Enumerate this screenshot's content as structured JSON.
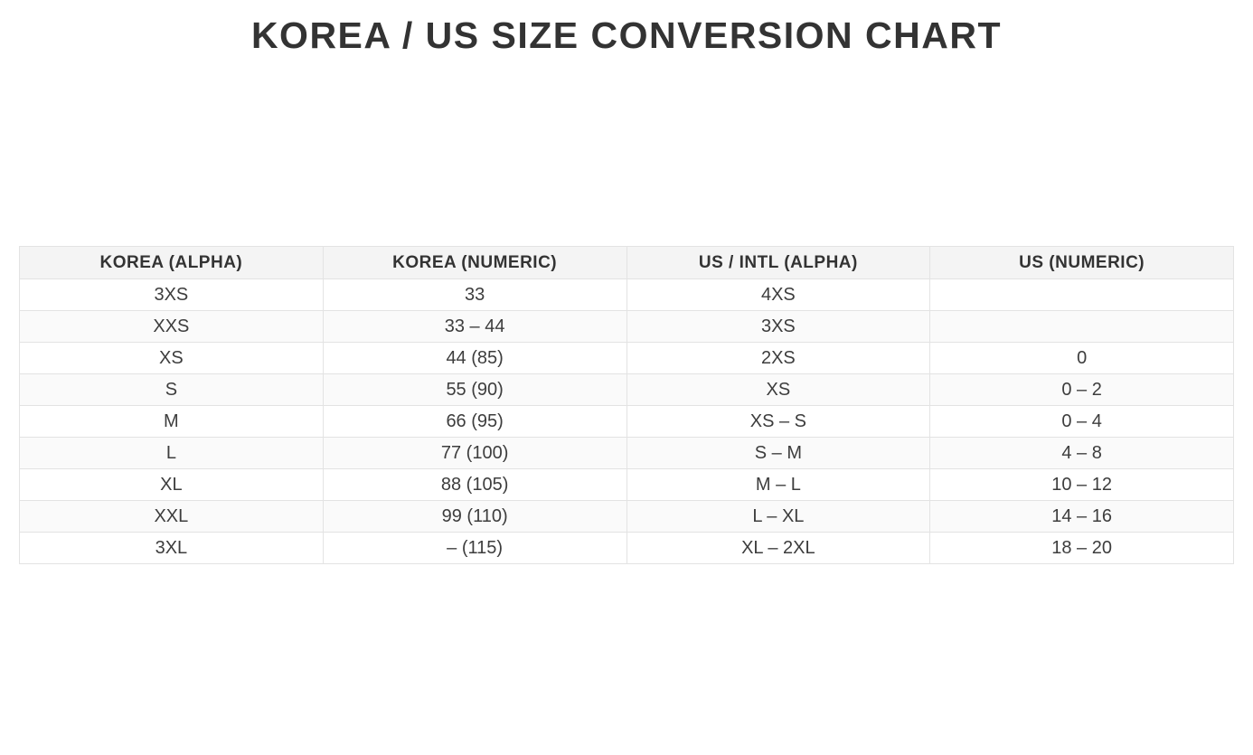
{
  "page": {
    "title": "KOREA / US SIZE CONVERSION CHART"
  },
  "colors": {
    "title_text": "#333333",
    "header_background": "#f4f4f4",
    "header_text": "#333333",
    "body_text": "#3d3d3d",
    "row_stripe": "#fafafa",
    "cell_border": "#e3e3e3",
    "page_background": "#ffffff"
  },
  "table": {
    "columns": [
      "KOREA (ALPHA)",
      "KOREA (NUMERIC)",
      "US / INTL (ALPHA)",
      "US (NUMERIC)"
    ],
    "rows": [
      [
        "3XS",
        "33",
        "4XS",
        ""
      ],
      [
        "XXS",
        "33 – 44",
        "3XS",
        ""
      ],
      [
        "XS",
        "44 (85)",
        "2XS",
        "0"
      ],
      [
        "S",
        "55 (90)",
        "XS",
        "0 – 2"
      ],
      [
        "M",
        "66 (95)",
        "XS – S",
        "0 – 4"
      ],
      [
        "L",
        "77 (100)",
        "S – M",
        "4 – 8"
      ],
      [
        "XL",
        "88 (105)",
        "M – L",
        "10 – 12"
      ],
      [
        "XXL",
        "99 (110)",
        "L – XL",
        "14 – 16"
      ],
      [
        "3XL",
        "– (115)",
        "XL – 2XL",
        "18 – 20"
      ]
    ]
  },
  "chart_data": {
    "type": "table",
    "title": "KOREA / US SIZE CONVERSION CHART",
    "columns": [
      "KOREA (ALPHA)",
      "KOREA (NUMERIC)",
      "US / INTL (ALPHA)",
      "US (NUMERIC)"
    ],
    "rows": [
      [
        "3XS",
        "33",
        "4XS",
        ""
      ],
      [
        "XXS",
        "33 – 44",
        "3XS",
        ""
      ],
      [
        "XS",
        "44 (85)",
        "2XS",
        "0"
      ],
      [
        "S",
        "55 (90)",
        "XS",
        "0 – 2"
      ],
      [
        "M",
        "66 (95)",
        "XS – S",
        "0 – 4"
      ],
      [
        "L",
        "77 (100)",
        "S – M",
        "4 – 8"
      ],
      [
        "XL",
        "88 (105)",
        "M – L",
        "10 – 12"
      ],
      [
        "XXL",
        "99 (110)",
        "L – XL",
        "14 – 16"
      ],
      [
        "3XL",
        "– (115)",
        "XL – 2XL",
        "18 – 20"
      ]
    ],
    "layout_hints": {
      "header_row_shaded": true,
      "zebra_striping": "even rows shaded",
      "cell_alignment": "center",
      "columns_equal_width": true
    }
  }
}
